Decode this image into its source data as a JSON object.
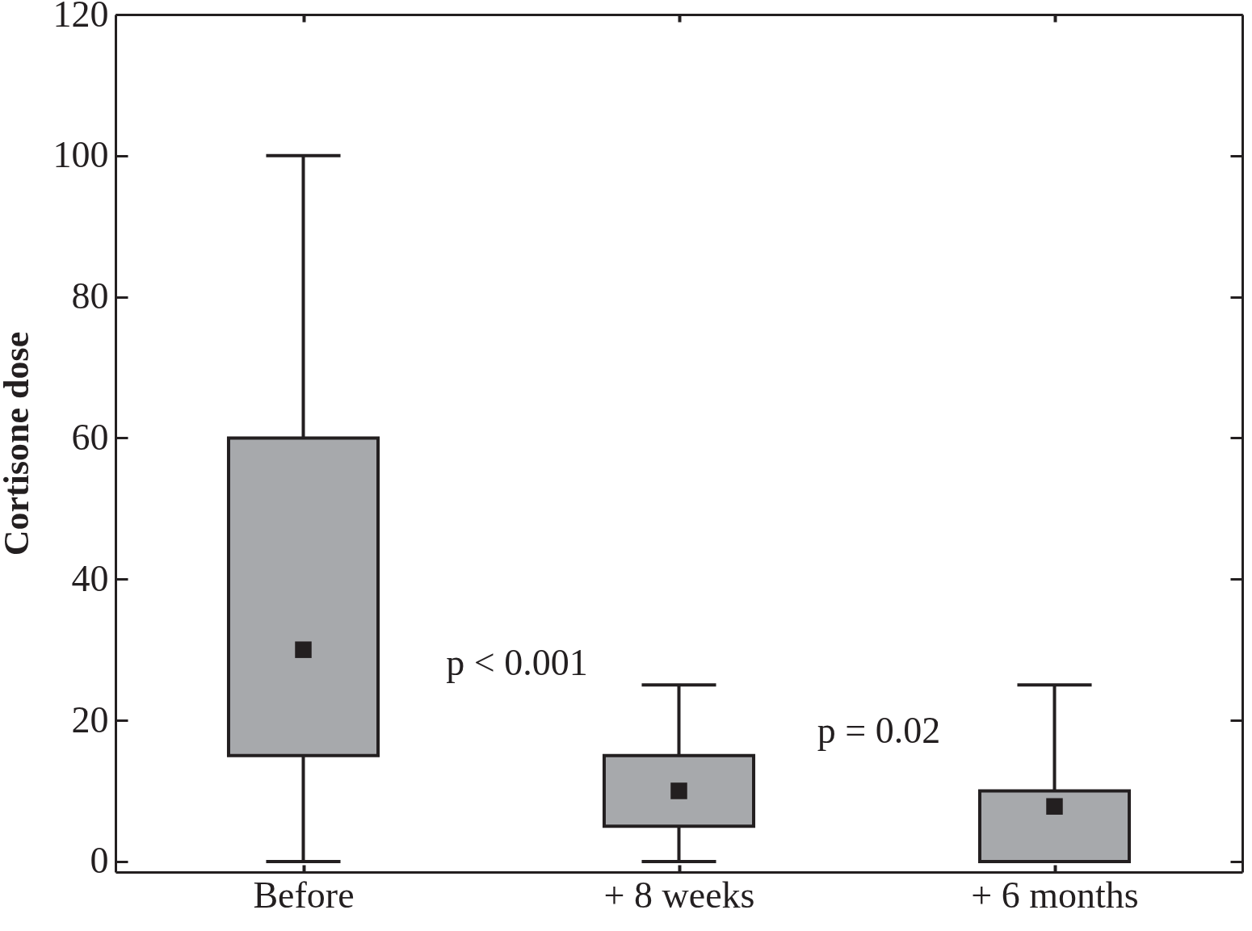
{
  "chart_data": {
    "type": "box",
    "ylabel": "Cortisone dose",
    "categories": [
      "Before",
      "+ 8 weeks",
      "+ 6 months"
    ],
    "boxes": [
      {
        "low": 0,
        "q1": 15,
        "median": 30,
        "q3": 60,
        "high": 100
      },
      {
        "low": 0,
        "q1": 5,
        "median": 10,
        "q3": 15,
        "high": 25
      },
      {
        "low": 0,
        "q1": 0,
        "median": 7.8,
        "q3": 10,
        "high": 25
      }
    ],
    "color": "#a7a9ac",
    "marker": "square",
    "ylim": [
      -1.5,
      120
    ],
    "yticks": [
      0,
      20,
      40,
      60,
      80,
      100,
      120
    ],
    "grid": false,
    "annotations": [
      "p < 0.001",
      "p = 0.02"
    ]
  }
}
